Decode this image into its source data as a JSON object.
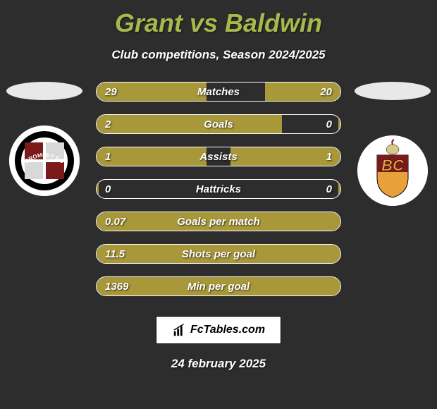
{
  "title": "Grant vs Baldwin",
  "subtitle": "Club competitions, Season 2024/2025",
  "date": "24 february 2025",
  "logo_text": "FcTables.com",
  "colors": {
    "bar_left": "#a8983a",
    "bar_right": "#a8983a",
    "title_color": "#a8b84a",
    "bg": "#2d2d2d",
    "border": "#ffffff",
    "text": "#ffffff"
  },
  "bars": [
    {
      "label": "Matches",
      "left_val": "29",
      "right_val": "20",
      "left_pct": 45,
      "right_pct": 31
    },
    {
      "label": "Goals",
      "left_val": "2",
      "right_val": "0",
      "left_pct": 76,
      "right_pct": 1
    },
    {
      "label": "Assists",
      "left_val": "1",
      "right_val": "1",
      "left_pct": 45,
      "right_pct": 45
    },
    {
      "label": "Hattricks",
      "left_val": "0",
      "right_val": "0",
      "left_pct": 1,
      "right_pct": 1
    },
    {
      "label": "Goals per match",
      "left_val": "0.07",
      "right_val": "",
      "left_pct": 100,
      "right_pct": 0
    },
    {
      "label": "Shots per goal",
      "left_val": "11.5",
      "right_val": "",
      "left_pct": 100,
      "right_pct": 0
    },
    {
      "label": "Min per goal",
      "left_val": "1369",
      "right_val": "",
      "left_pct": 100,
      "right_pct": 0
    }
  ],
  "crest_left": {
    "bg": "#ffffff",
    "band_color": "#000000",
    "text": "BROMLEY·F.C",
    "text_color": "#ffffff"
  },
  "crest_right": {
    "bg": "#ffffff",
    "shield_top": "#7a1a1a",
    "shield_bottom": "#e8a03a",
    "letters": "BC",
    "letters_color": "#e8a03a"
  }
}
